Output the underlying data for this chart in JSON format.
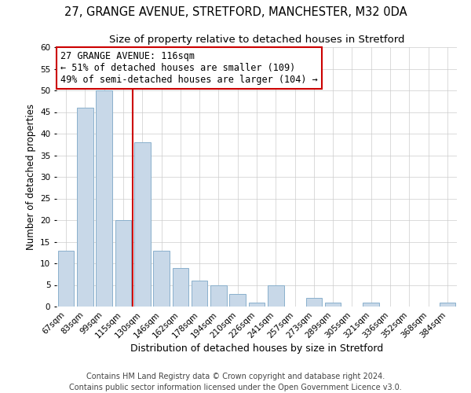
{
  "title": "27, GRANGE AVENUE, STRETFORD, MANCHESTER, M32 0DA",
  "subtitle": "Size of property relative to detached houses in Stretford",
  "xlabel": "Distribution of detached houses by size in Stretford",
  "ylabel": "Number of detached properties",
  "bar_labels": [
    "67sqm",
    "83sqm",
    "99sqm",
    "115sqm",
    "130sqm",
    "146sqm",
    "162sqm",
    "178sqm",
    "194sqm",
    "210sqm",
    "226sqm",
    "241sqm",
    "257sqm",
    "273sqm",
    "289sqm",
    "305sqm",
    "321sqm",
    "336sqm",
    "352sqm",
    "368sqm",
    "384sqm"
  ],
  "bar_heights": [
    13,
    46,
    50,
    20,
    38,
    13,
    9,
    6,
    5,
    3,
    1,
    5,
    0,
    2,
    1,
    0,
    1,
    0,
    0,
    0,
    1
  ],
  "bar_color": "#c8d8e8",
  "bar_edge_color": "#8ab0cc",
  "vline_x": 3.5,
  "vline_color": "#cc0000",
  "annotation_title": "27 GRANGE AVENUE: 116sqm",
  "annotation_line1": "← 51% of detached houses are smaller (109)",
  "annotation_line2": "49% of semi-detached houses are larger (104) →",
  "annotation_box_color": "#ffffff",
  "annotation_box_edge": "#cc0000",
  "ylim": [
    0,
    60
  ],
  "yticks": [
    0,
    5,
    10,
    15,
    20,
    25,
    30,
    35,
    40,
    45,
    50,
    55,
    60
  ],
  "footer_line1": "Contains HM Land Registry data © Crown copyright and database right 2024.",
  "footer_line2": "Contains public sector information licensed under the Open Government Licence v3.0.",
  "title_fontsize": 10.5,
  "subtitle_fontsize": 9.5,
  "xlabel_fontsize": 9,
  "ylabel_fontsize": 8.5,
  "tick_fontsize": 7.5,
  "footer_fontsize": 7,
  "annotation_fontsize": 8.5
}
